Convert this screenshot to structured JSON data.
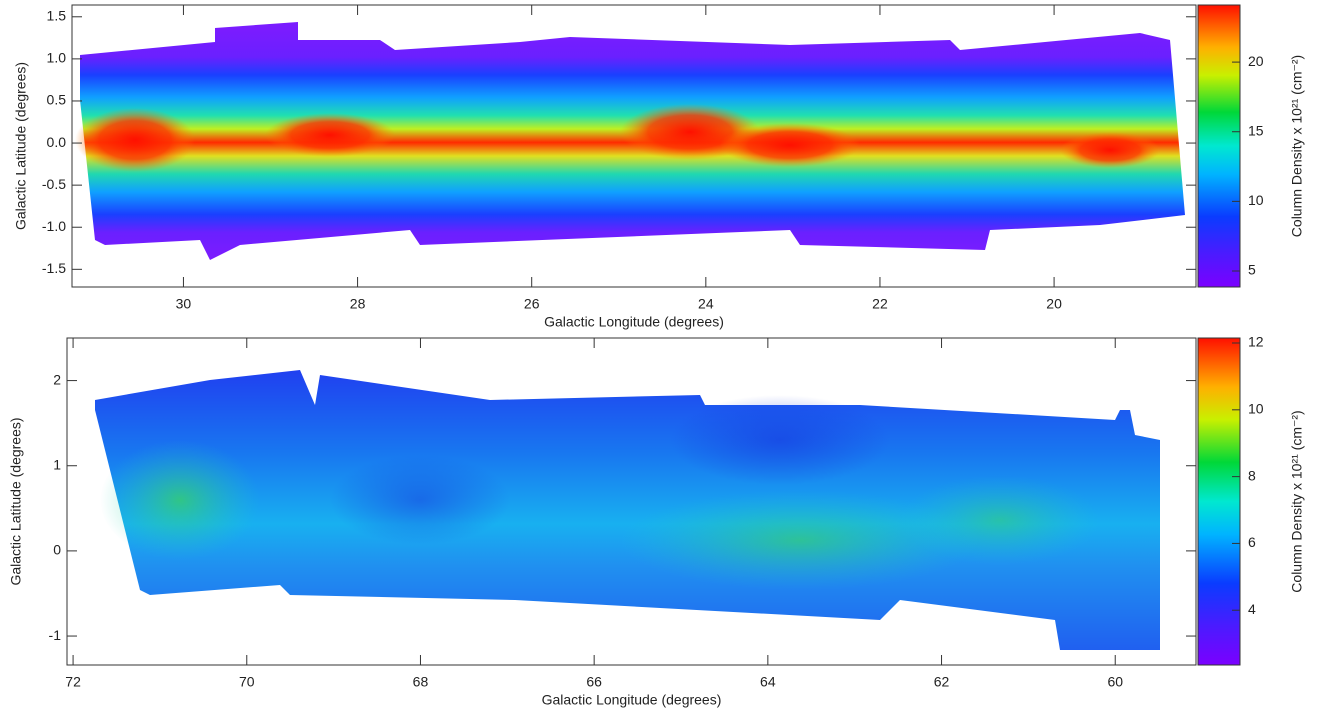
{
  "chart_data": [
    {
      "type": "heatmap",
      "xlabel": "Galactic Longitude (degrees)",
      "ylabel": "Galactic Latitude (degrees)",
      "xlim": [
        31.28,
        18.37
      ],
      "xticks": [
        30,
        28,
        26,
        24,
        22,
        20
      ],
      "ylim": [
        -1.71,
        1.64
      ],
      "yticks": [
        {
          "value": -1.5,
          "label": "-1.5"
        },
        {
          "value": -1.0,
          "label": "-1.0"
        },
        {
          "value": -0.5,
          "label": "-0.5"
        },
        {
          "value": 0.0,
          "label": "0.0"
        },
        0.5,
        {
          "value": 1.0,
          "label": "1.0"
        },
        1.5
      ],
      "colorbar_label": "Column Density x 10²¹ (cm⁻²)",
      "clim": [
        3.85,
        24.1
      ],
      "cticks": [
        5,
        10,
        15,
        20
      ]
    },
    {
      "type": "heatmap",
      "xlabel": "Galactic Longitude (degrees)",
      "ylabel": "Galactic Latitude (degrees)",
      "xlim": [
        72.07,
        59.07
      ],
      "xticks": [
        72,
        70,
        68,
        66,
        64,
        62,
        60
      ],
      "ylim": [
        -1.34,
        2.5
      ],
      "yticks": [
        -1,
        0,
        1,
        2
      ],
      "colorbar_label": "Column Density x 10²¹ (cm⁻²)",
      "clim": [
        2.36,
        12.15
      ],
      "cticks": [
        4,
        6,
        8,
        10,
        12
      ]
    }
  ]
}
